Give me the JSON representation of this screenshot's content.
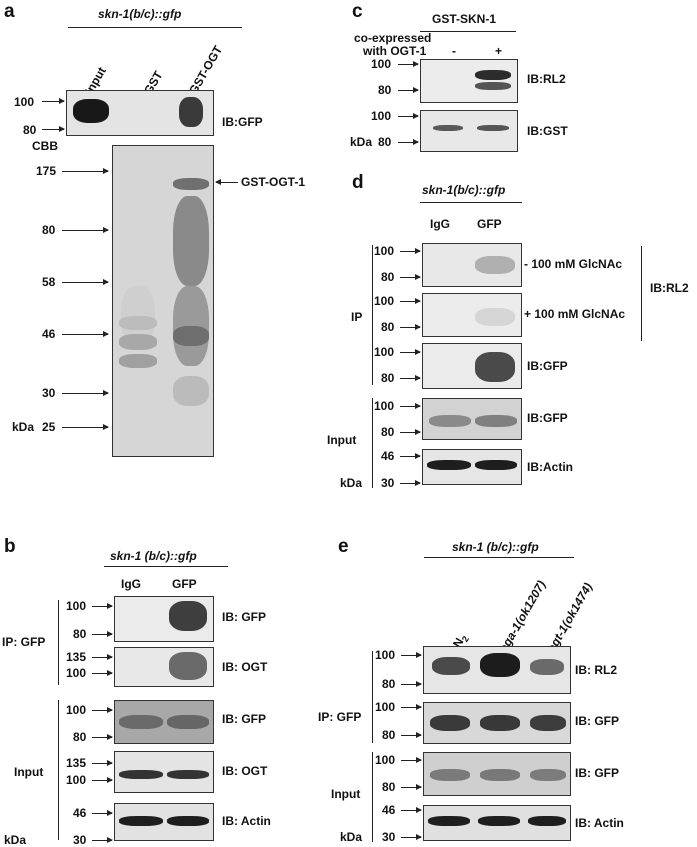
{
  "panels": [
    "a",
    "b",
    "c",
    "d",
    "e"
  ],
  "panel_a": {
    "header": "skn-1(b/c)::gfp",
    "lanes": [
      "Input",
      "GST",
      "GST-OGT"
    ],
    "top_markers": [
      "100",
      "80"
    ],
    "top_blot_label": "IB:GFP",
    "stain_label": "CBB",
    "gel_markers": [
      "175",
      "80",
      "58",
      "46",
      "30",
      "25"
    ],
    "kda": "kDa",
    "band_annotation": "GST-OGT-1"
  },
  "panel_b": {
    "header": "skn-1 (b/c)::gfp",
    "lanes": [
      "IgG",
      "GFP"
    ],
    "ip_label": "IP: GFP",
    "input_label": "Input",
    "kda": "kDa",
    "blots": [
      {
        "markers": [
          "100",
          "80"
        ],
        "label": "IB: GFP"
      },
      {
        "markers": [
          "135",
          "100"
        ],
        "label": "IB: OGT"
      },
      {
        "markers": [
          "100",
          "80"
        ],
        "label": "IB: GFP"
      },
      {
        "markers": [
          "135",
          "100"
        ],
        "label": "IB: OGT"
      },
      {
        "markers": [
          "46",
          "30"
        ],
        "label": "IB: Actin"
      }
    ]
  },
  "panel_c": {
    "header": "GST-SKN-1",
    "row_label_1": "co-expressed",
    "row_label_2": "with OGT-1",
    "conditions": [
      "-",
      "+"
    ],
    "kda": "kDa",
    "blots": [
      {
        "markers": [
          "100",
          "80"
        ],
        "label": "IB:RL2"
      },
      {
        "markers": [
          "100",
          "80"
        ],
        "label": "IB:GST"
      }
    ]
  },
  "panel_d": {
    "header": "skn-1(b/c)::gfp",
    "lanes": [
      "IgG",
      "GFP"
    ],
    "ip_label": "IP",
    "input_label": "Input",
    "kda": "kDa",
    "rl2_label": "IB:RL2",
    "blots": [
      {
        "markers": [
          "100",
          "80"
        ],
        "label": "- 100 mM GlcNAc"
      },
      {
        "markers": [
          "100",
          "80"
        ],
        "label": "+ 100 mM GlcNAc"
      },
      {
        "markers": [
          "100",
          "80"
        ],
        "label": "IB:GFP"
      },
      {
        "markers": [
          "100",
          "80"
        ],
        "label": "IB:GFP"
      },
      {
        "markers": [
          "46",
          "30"
        ],
        "label": "IB:Actin"
      }
    ]
  },
  "panel_e": {
    "header": "skn-1 (b/c)::gfp",
    "lane_n2": "N",
    "lane_n2_sub": "2",
    "lane_oga_gene": "oga-1",
    "lane_oga_allele": "(ok1207)",
    "lane_ogt_gene": "ogt-1",
    "lane_ogt_allele": "(ok1474)",
    "ip_label": "IP: GFP",
    "input_label": "Input",
    "kda": "kDa",
    "blots": [
      {
        "markers": [
          "100",
          "80"
        ],
        "label": "IB: RL2"
      },
      {
        "markers": [
          "100",
          "80"
        ],
        "label": "IB: GFP"
      },
      {
        "markers": [
          "100",
          "80"
        ],
        "label": "IB: GFP"
      },
      {
        "markers": [
          "46",
          "30"
        ],
        "label": "IB: Actin"
      }
    ]
  }
}
